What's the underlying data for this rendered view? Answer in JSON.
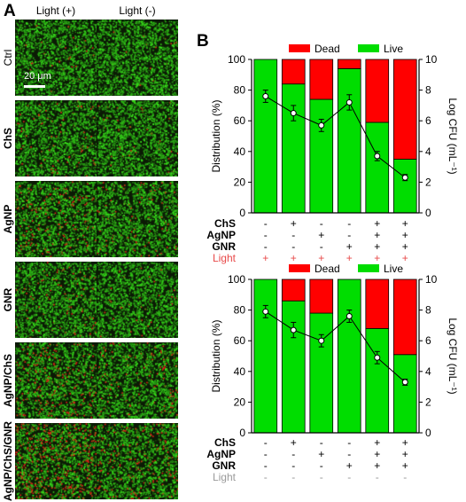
{
  "panel_a": {
    "letter": "A",
    "columns": [
      "Light (+)",
      "Light (-)"
    ],
    "rows": [
      "Ctrl",
      "ChS",
      "AgNP",
      "GNR",
      "AgNP/ChS",
      "AgNP/ChS/GNR"
    ],
    "scale_bar": "20 μm",
    "colors": {
      "live": "#22c41f",
      "dead": "#e52216",
      "background": "#0b1a05"
    }
  },
  "panel_b": {
    "letter": "B"
  },
  "chart_data": [
    {
      "type": "bar",
      "subtype": "stacked-bar-with-line",
      "legend": [
        "Dead",
        "Live"
      ],
      "legend_position": "top",
      "colors": {
        "Dead": "#ff0000",
        "Live": "#00dd00"
      },
      "ylabel": "Distribution (%)",
      "y2label": "Log CFU (mL⁻¹)",
      "ylim": [
        0,
        100
      ],
      "y2lim": [
        0,
        10
      ],
      "yticks": [
        0,
        20,
        40,
        60,
        80,
        100
      ],
      "y2ticks": [
        0,
        2,
        4,
        6,
        8,
        10
      ],
      "series": [
        {
          "name": "Live",
          "values": [
            100,
            84,
            74,
            94,
            59,
            35
          ]
        },
        {
          "name": "Dead",
          "values": [
            0,
            16,
            26,
            6,
            41,
            65
          ]
        }
      ],
      "line": {
        "values": [
          7.6,
          6.5,
          5.7,
          7.2,
          3.7,
          2.3
        ],
        "errors": [
          0.4,
          0.5,
          0.4,
          0.5,
          0.3,
          0.2
        ]
      },
      "conditions": [
        {
          "label": "ChS",
          "values": [
            "-",
            "+",
            "-",
            "-",
            "+",
            "+"
          ]
        },
        {
          "label": "AgNP",
          "values": [
            "-",
            "-",
            "+",
            "-",
            "+",
            "+"
          ]
        },
        {
          "label": "GNR",
          "values": [
            "-",
            "-",
            "-",
            "+",
            "+",
            "+"
          ]
        },
        {
          "label": "Light",
          "values": [
            "+",
            "+",
            "+",
            "+",
            "+",
            "+"
          ],
          "color": "#e84a4a"
        }
      ]
    },
    {
      "type": "bar",
      "subtype": "stacked-bar-with-line",
      "legend": [
        "Dead",
        "Live"
      ],
      "legend_position": "top",
      "colors": {
        "Dead": "#ff0000",
        "Live": "#00dd00"
      },
      "ylabel": "Distribution (%)",
      "y2label": "Log CFU (mL⁻¹)",
      "ylim": [
        0,
        100
      ],
      "y2lim": [
        0,
        10
      ],
      "yticks": [
        0,
        20,
        40,
        60,
        80,
        100
      ],
      "y2ticks": [
        0,
        2,
        4,
        6,
        8,
        10
      ],
      "series": [
        {
          "name": "Live",
          "values": [
            100,
            86,
            78,
            100,
            68,
            51
          ]
        },
        {
          "name": "Dead",
          "values": [
            0,
            14,
            22,
            0,
            32,
            49
          ]
        }
      ],
      "line": {
        "values": [
          7.9,
          6.7,
          6.0,
          7.6,
          4.9,
          3.3
        ],
        "errors": [
          0.4,
          0.5,
          0.4,
          0.4,
          0.4,
          0.2
        ]
      },
      "conditions": [
        {
          "label": "ChS",
          "values": [
            "-",
            "+",
            "-",
            "-",
            "+",
            "+"
          ]
        },
        {
          "label": "AgNP",
          "values": [
            "-",
            "-",
            "+",
            "-",
            "+",
            "+"
          ]
        },
        {
          "label": "GNR",
          "values": [
            "-",
            "-",
            "-",
            "+",
            "+",
            "+"
          ]
        },
        {
          "label": "Light",
          "values": [
            "-",
            "-",
            "-",
            "-",
            "-",
            "-"
          ],
          "color": "#9a9a9a"
        }
      ]
    }
  ]
}
